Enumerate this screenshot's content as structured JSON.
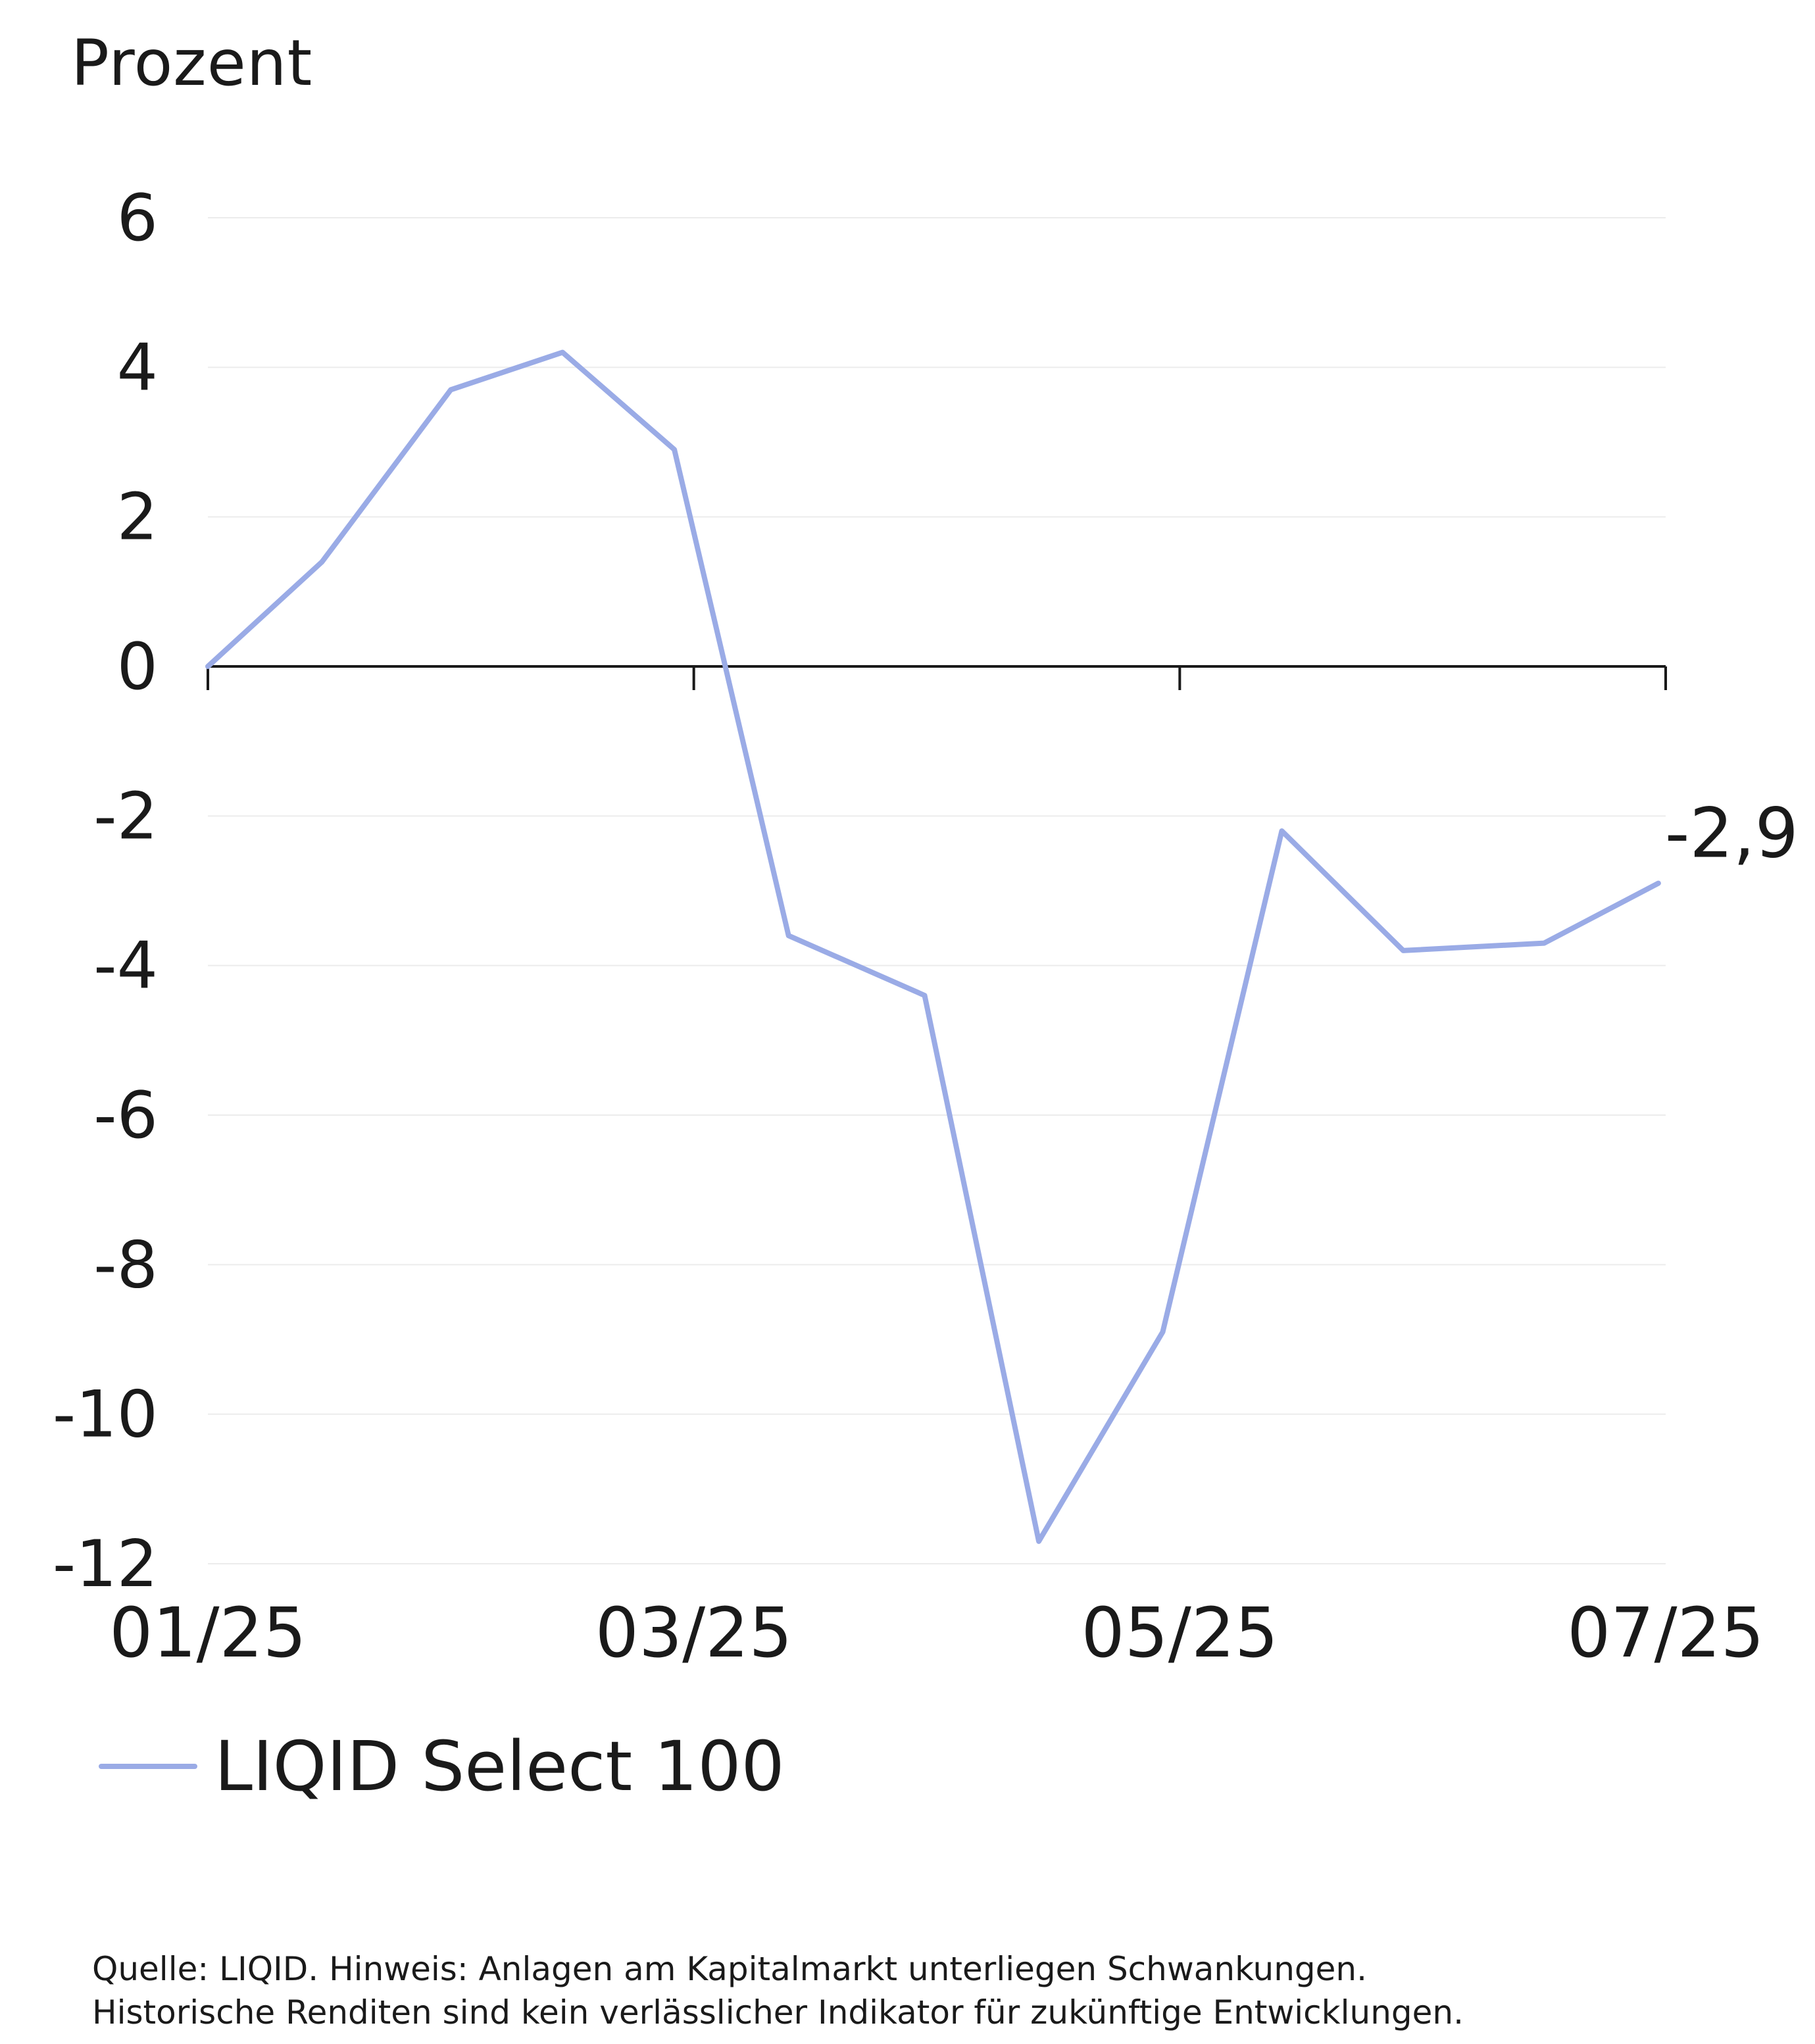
{
  "y_unit_label": "Prozent",
  "legend": {
    "label": "LIQID Select 100",
    "color": "#9aabe6"
  },
  "end_label": "-2,9",
  "footnote": {
    "line1": "Quelle: LIQID. Hinweis: Anlagen am Kapitalmarkt unterliegen Schwankungen.",
    "line2": "Historische Renditen sind kein verlässlicher Indikator für zukünftige Entwicklungen."
  },
  "colors": {
    "series": "#9aabe6",
    "text": "#1a1a1a",
    "axis": "#1a1a1a",
    "grid": "#ececec"
  },
  "chart_data": {
    "type": "line",
    "title": "",
    "xlabel": "",
    "ylabel": "Prozent",
    "x_tick_labels": [
      "01/25",
      "03/25",
      "05/25",
      "07/25"
    ],
    "x_tick_positions": [
      0,
      2,
      4,
      6
    ],
    "xlim": [
      0,
      6
    ],
    "y_ticks": [
      6,
      4,
      2,
      0,
      -2,
      -4,
      -6,
      -8,
      -10,
      -12
    ],
    "y_tick_labels": [
      "6",
      "4",
      "2",
      "0",
      "-2",
      "-4",
      "-6",
      "-8",
      "-10",
      "-12"
    ],
    "ylim": [
      -12,
      6
    ],
    "grid": true,
    "legend_position": "bottom-left",
    "series": [
      {
        "name": "LIQID Select 100",
        "color": "#9aabe6",
        "x": [
          0,
          0.47,
          1.0,
          1.46,
          1.92,
          2.39,
          2.95,
          3.42,
          3.93,
          4.42,
          4.92,
          5.5,
          5.97
        ],
        "values": [
          0.0,
          1.4,
          3.7,
          4.2,
          2.9,
          -3.6,
          -4.4,
          -11.7,
          -8.9,
          -2.2,
          -3.8,
          -3.7,
          -2.9
        ]
      }
    ],
    "annotations": [
      {
        "text": "-2,9",
        "x": 5.97,
        "y": -2.9
      }
    ]
  }
}
